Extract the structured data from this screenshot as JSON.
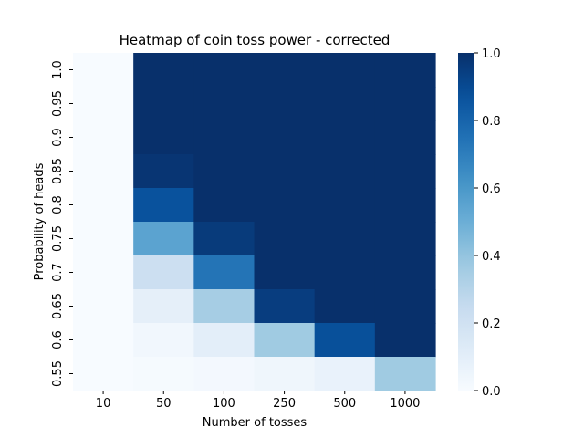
{
  "chart_data": {
    "type": "heatmap",
    "title": "Heatmap of coin toss power - corrected",
    "xlabel": "Number of tosses",
    "ylabel": "Probability of heads",
    "x_categories": [
      "10",
      "50",
      "100",
      "250",
      "500",
      "1000"
    ],
    "y_categories": [
      "1.0",
      "0.95",
      "0.9",
      "0.85",
      "0.8",
      "0.75",
      "0.7",
      "0.65",
      "0.6",
      "0.55"
    ],
    "values": [
      [
        0.0,
        1.0,
        1.0,
        1.0,
        1.0,
        1.0
      ],
      [
        0.0,
        1.0,
        1.0,
        1.0,
        1.0,
        1.0
      ],
      [
        0.0,
        1.0,
        1.0,
        1.0,
        1.0,
        1.0
      ],
      [
        0.0,
        0.98,
        1.0,
        1.0,
        1.0,
        1.0
      ],
      [
        0.0,
        0.87,
        1.0,
        1.0,
        1.0,
        1.0
      ],
      [
        0.0,
        0.55,
        0.96,
        1.0,
        1.0,
        1.0
      ],
      [
        0.0,
        0.22,
        0.74,
        1.0,
        1.0,
        1.0
      ],
      [
        0.0,
        0.09,
        0.35,
        0.95,
        1.0,
        1.0
      ],
      [
        0.0,
        0.03,
        0.1,
        0.37,
        0.88,
        1.0
      ],
      [
        0.0,
        0.01,
        0.02,
        0.04,
        0.07,
        0.37
      ]
    ],
    "vmin": 0.0,
    "vmax": 1.0,
    "colorbar_ticks": [
      "0.0",
      "0.2",
      "0.4",
      "0.6",
      "0.8",
      "1.0"
    ],
    "colormap": "Blues"
  }
}
